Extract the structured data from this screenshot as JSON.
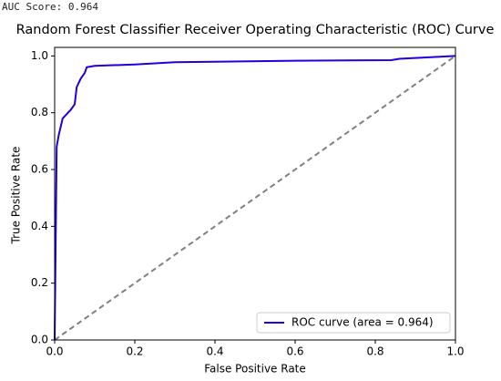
{
  "output_text": "AUC Score: 0.964",
  "chart_data": {
    "type": "line",
    "title": "Random Forest Classifier Receiver Operating Characteristic (ROC) Curve",
    "x_label": "False Positive Rate",
    "y_label": "True Positive Rate",
    "xlim": [
      0,
      1
    ],
    "ylim": [
      0,
      1.03
    ],
    "xticks": [
      {
        "value": 0,
        "label": "0.0"
      },
      0.2,
      0.4,
      0.6,
      0.8,
      {
        "value": 1,
        "label": "1.0"
      }
    ],
    "yticks": [
      {
        "value": 0,
        "label": "0.0"
      },
      0.2,
      0.4,
      0.6,
      0.8,
      {
        "value": 1,
        "label": "1.0"
      }
    ],
    "legend": "lower right",
    "series": [
      {
        "name": "ROC curve (area = 0.964)",
        "color": "#1f00e0",
        "style": "solid",
        "x": [
          0,
          0.005,
          0.01,
          0.02,
          0.04,
          0.05,
          0.055,
          0.065,
          0.075,
          0.08,
          0.1,
          0.2,
          0.3,
          0.6,
          0.84,
          0.86,
          1
        ],
        "values": [
          0,
          0.68,
          0.72,
          0.78,
          0.81,
          0.83,
          0.89,
          0.92,
          0.94,
          0.96,
          0.965,
          0.97,
          0.978,
          0.983,
          0.985,
          0.99,
          1
        ]
      },
      {
        "color": "#808080",
        "style": "dashed",
        "x": [
          0,
          1
        ],
        "values": [
          0,
          1
        ]
      }
    ]
  }
}
